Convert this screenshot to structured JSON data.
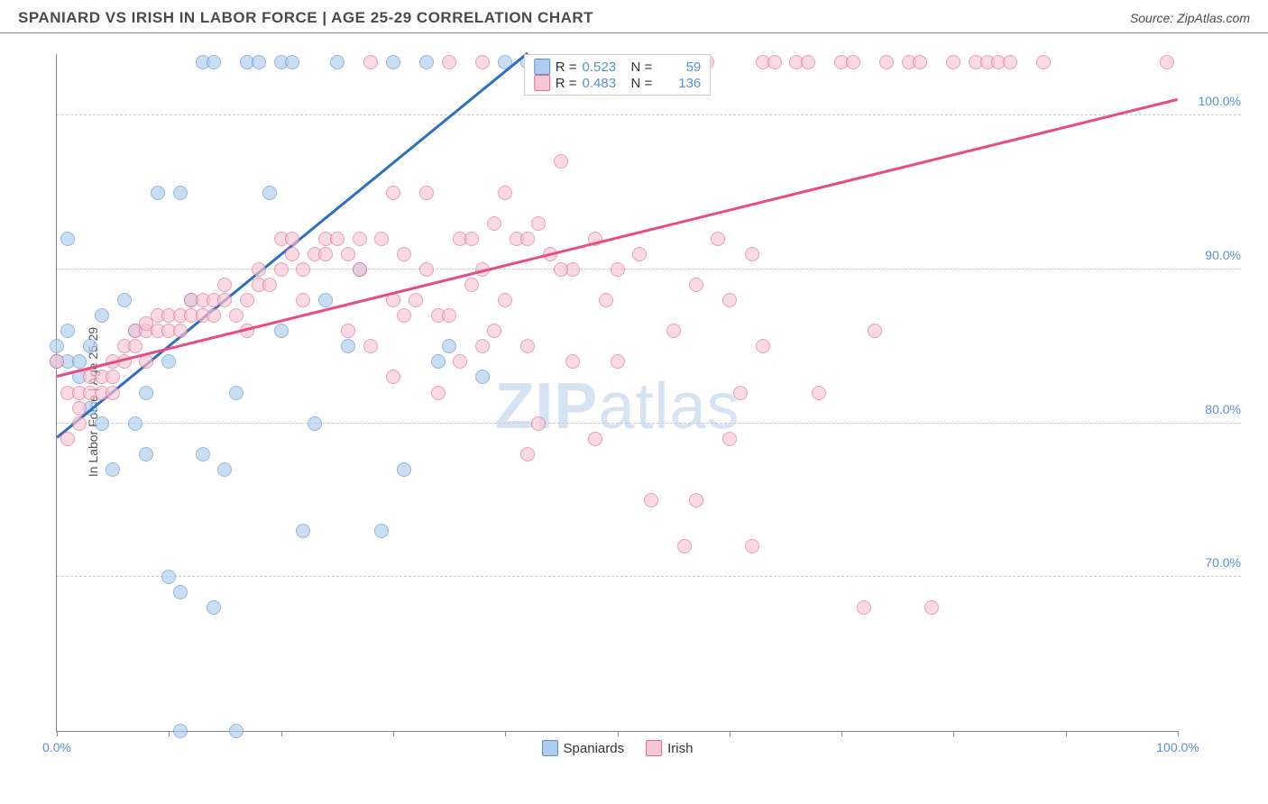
{
  "header": {
    "title": "SPANIARD VS IRISH IN LABOR FORCE | AGE 25-29 CORRELATION CHART",
    "source_prefix": "Source: ",
    "source_name": "ZipAtlas.com"
  },
  "watermark": {
    "zip": "ZIP",
    "atlas": "atlas"
  },
  "chart": {
    "type": "scatter",
    "ylabel": "In Labor Force | Age 25-29",
    "xlim": [
      0,
      100
    ],
    "ylim": [
      60,
      104
    ],
    "yticks": [
      {
        "v": 70,
        "label": "70.0%"
      },
      {
        "v": 80,
        "label": "80.0%"
      },
      {
        "v": 90,
        "label": "90.0%"
      },
      {
        "v": 100,
        "label": "100.0%"
      }
    ],
    "xticks": [
      {
        "v": 0,
        "label": "0.0%"
      },
      {
        "v": 10,
        "label": ""
      },
      {
        "v": 20,
        "label": ""
      },
      {
        "v": 30,
        "label": ""
      },
      {
        "v": 40,
        "label": ""
      },
      {
        "v": 50,
        "label": ""
      },
      {
        "v": 60,
        "label": ""
      },
      {
        "v": 70,
        "label": ""
      },
      {
        "v": 80,
        "label": ""
      },
      {
        "v": 90,
        "label": ""
      },
      {
        "v": 100,
        "label": "100.0%"
      }
    ],
    "grid_color": "#cccccc",
    "axis_color": "#888888",
    "tick_label_color": "#5a8fd6",
    "series": [
      {
        "name": "Spaniards",
        "fill": "#aecdee",
        "stroke": "#5b92d0",
        "trend_color": "#2f6fc1",
        "marker_radius": 8,
        "stroke_width": 1.4,
        "fill_opacity": 0.65,
        "R_label": "R =",
        "R": "0.523",
        "N_label": "N =",
        "N": "59",
        "trend": {
          "x1": 0,
          "y1": 79,
          "x2": 42,
          "y2": 104
        },
        "points": [
          [
            0,
            84
          ],
          [
            0,
            85
          ],
          [
            1,
            86
          ],
          [
            1,
            84
          ],
          [
            1,
            92
          ],
          [
            2,
            84
          ],
          [
            2,
            83
          ],
          [
            3,
            81
          ],
          [
            3,
            85
          ],
          [
            4,
            87
          ],
          [
            4,
            80
          ],
          [
            5,
            77
          ],
          [
            6,
            88
          ],
          [
            7,
            86
          ],
          [
            7,
            80
          ],
          [
            8,
            82
          ],
          [
            8,
            78
          ],
          [
            9,
            95
          ],
          [
            10,
            84
          ],
          [
            10,
            70
          ],
          [
            11,
            95
          ],
          [
            11,
            69
          ],
          [
            12,
            88
          ],
          [
            13,
            78
          ],
          [
            13,
            103.5
          ],
          [
            14,
            103.5
          ],
          [
            15,
            77
          ],
          [
            16,
            60
          ],
          [
            16,
            82
          ],
          [
            17,
            103.5
          ],
          [
            18,
            103.5
          ],
          [
            19,
            95
          ],
          [
            20,
            103.5
          ],
          [
            20,
            86
          ],
          [
            21,
            103.5
          ],
          [
            22,
            73
          ],
          [
            23,
            80
          ],
          [
            24,
            88
          ],
          [
            25,
            103.5
          ],
          [
            26,
            85
          ],
          [
            27,
            90
          ],
          [
            29,
            73
          ],
          [
            30,
            103.5
          ],
          [
            31,
            77
          ],
          [
            33,
            103.5
          ],
          [
            34,
            84
          ],
          [
            35,
            85
          ],
          [
            38,
            83
          ],
          [
            40,
            103.5
          ],
          [
            42,
            103.5
          ],
          [
            43,
            103.5
          ],
          [
            49,
            103.5
          ],
          [
            50,
            103.5
          ],
          [
            52,
            103.5
          ],
          [
            53,
            103.5
          ],
          [
            54,
            103.5
          ],
          [
            55,
            103.5
          ],
          [
            14,
            68
          ],
          [
            11,
            60
          ]
        ]
      },
      {
        "name": "Irish",
        "fill": "#f7c6d4",
        "stroke": "#e26c94",
        "trend_color": "#e84b87",
        "marker_radius": 8,
        "stroke_width": 1.4,
        "fill_opacity": 0.65,
        "R_label": "R =",
        "R": "0.483",
        "N_label": "N =",
        "N": "136",
        "trend": {
          "x1": 0,
          "y1": 83,
          "x2": 100,
          "y2": 101
        },
        "points": [
          [
            0,
            84
          ],
          [
            1,
            79
          ],
          [
            1,
            82
          ],
          [
            2,
            80
          ],
          [
            2,
            81
          ],
          [
            2,
            82
          ],
          [
            3,
            83
          ],
          [
            3,
            82
          ],
          [
            4,
            82
          ],
          [
            4,
            83
          ],
          [
            5,
            83
          ],
          [
            5,
            84
          ],
          [
            5,
            82
          ],
          [
            6,
            85
          ],
          [
            6,
            84
          ],
          [
            7,
            85
          ],
          [
            7,
            86
          ],
          [
            8,
            86
          ],
          [
            8,
            84
          ],
          [
            8,
            86.5
          ],
          [
            9,
            86
          ],
          [
            9,
            87
          ],
          [
            10,
            87
          ],
          [
            10,
            86
          ],
          [
            11,
            87
          ],
          [
            11,
            86
          ],
          [
            12,
            87
          ],
          [
            12,
            88
          ],
          [
            13,
            88
          ],
          [
            13,
            87
          ],
          [
            14,
            87
          ],
          [
            14,
            88
          ],
          [
            15,
            88
          ],
          [
            15,
            89
          ],
          [
            16,
            87
          ],
          [
            17,
            88
          ],
          [
            17,
            86
          ],
          [
            18,
            89
          ],
          [
            18,
            90
          ],
          [
            19,
            89
          ],
          [
            20,
            90
          ],
          [
            20,
            92
          ],
          [
            21,
            92
          ],
          [
            21,
            91
          ],
          [
            22,
            90
          ],
          [
            22,
            88
          ],
          [
            23,
            91
          ],
          [
            24,
            92
          ],
          [
            24,
            91
          ],
          [
            25,
            92
          ],
          [
            26,
            91
          ],
          [
            27,
            90
          ],
          [
            27,
            92
          ],
          [
            28,
            85
          ],
          [
            29,
            92
          ],
          [
            30,
            95
          ],
          [
            30,
            88
          ],
          [
            31,
            91
          ],
          [
            32,
            88
          ],
          [
            33,
            90
          ],
          [
            34,
            87
          ],
          [
            35,
            87
          ],
          [
            35,
            103.5
          ],
          [
            36,
            92
          ],
          [
            37,
            92
          ],
          [
            38,
            103.5
          ],
          [
            38,
            85
          ],
          [
            39,
            93
          ],
          [
            40,
            95
          ],
          [
            40,
            88
          ],
          [
            41,
            92
          ],
          [
            42,
            85
          ],
          [
            42,
            92
          ],
          [
            43,
            93
          ],
          [
            43,
            80
          ],
          [
            44,
            91
          ],
          [
            45,
            97
          ],
          [
            46,
            103.5
          ],
          [
            46,
            84
          ],
          [
            48,
            92
          ],
          [
            48,
            79
          ],
          [
            49,
            88
          ],
          [
            50,
            84
          ],
          [
            50,
            103.5
          ],
          [
            52,
            91
          ],
          [
            53,
            75
          ],
          [
            54,
            103.5
          ],
          [
            55,
            103.5
          ],
          [
            56,
            72
          ],
          [
            57,
            89
          ],
          [
            57,
            75
          ],
          [
            58,
            103.5
          ],
          [
            59,
            92
          ],
          [
            60,
            88
          ],
          [
            60,
            79
          ],
          [
            61,
            82
          ],
          [
            62,
            91
          ],
          [
            62,
            72
          ],
          [
            63,
            103.5
          ],
          [
            63,
            85
          ],
          [
            64,
            103.5
          ],
          [
            66,
            103.5
          ],
          [
            67,
            103.5
          ],
          [
            68,
            82
          ],
          [
            70,
            103.5
          ],
          [
            71,
            103.5
          ],
          [
            72,
            68
          ],
          [
            73,
            86
          ],
          [
            74,
            103.5
          ],
          [
            76,
            103.5
          ],
          [
            77,
            103.5
          ],
          [
            78,
            68
          ],
          [
            80,
            103.5
          ],
          [
            82,
            103.5
          ],
          [
            83,
            103.5
          ],
          [
            84,
            103.5
          ],
          [
            85,
            103.5
          ],
          [
            88,
            103.5
          ],
          [
            99,
            103.5
          ],
          [
            55,
            86
          ],
          [
            33,
            95
          ],
          [
            28,
            103.5
          ],
          [
            46,
            90
          ],
          [
            50,
            90
          ],
          [
            36,
            84
          ],
          [
            26,
            86
          ],
          [
            45,
            90
          ],
          [
            42,
            78
          ],
          [
            38,
            90
          ],
          [
            30,
            83
          ],
          [
            47,
            103.5
          ],
          [
            52,
            103.5
          ],
          [
            39,
            86
          ],
          [
            34,
            82
          ],
          [
            31,
            87
          ],
          [
            37,
            89
          ]
        ]
      }
    ],
    "legend_bottom": [
      {
        "label": "Spaniards",
        "fill": "#aecdee",
        "stroke": "#5b92d0"
      },
      {
        "label": "Irish",
        "fill": "#f7c6d4",
        "stroke": "#e26c94"
      }
    ]
  }
}
